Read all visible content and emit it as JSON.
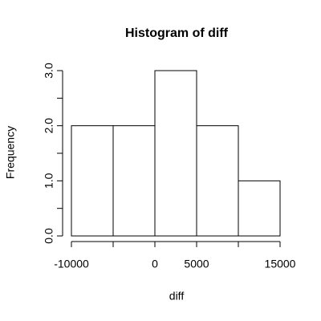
{
  "chart_data": {
    "type": "histogram",
    "title": "Histogram of diff",
    "x_label": "diff",
    "y_label": "Frequency",
    "bins": [
      -10000,
      -5000,
      0,
      5000,
      10000,
      15000
    ],
    "values": [
      2,
      2,
      3,
      2,
      1
    ],
    "color": "#ffffff",
    "edge_color": "#000000",
    "xlim": [
      -10000,
      15000
    ],
    "xticks": [
      -10000,
      {
        "value": -5000,
        "label": null
      },
      0,
      5000,
      {
        "value": 10000,
        "label": null
      },
      15000
    ],
    "ylim": [
      0,
      3
    ],
    "yticks": [
      {
        "value": 0,
        "label": "0.0"
      },
      {
        "value": 0.5,
        "label": null
      },
      {
        "value": 1,
        "label": "1.0"
      },
      {
        "value": 1.5,
        "label": null
      },
      {
        "value": 2,
        "label": "2.0"
      },
      {
        "value": 2.5,
        "label": null
      },
      {
        "value": 3,
        "label": "3.0"
      }
    ],
    "grid": false
  }
}
